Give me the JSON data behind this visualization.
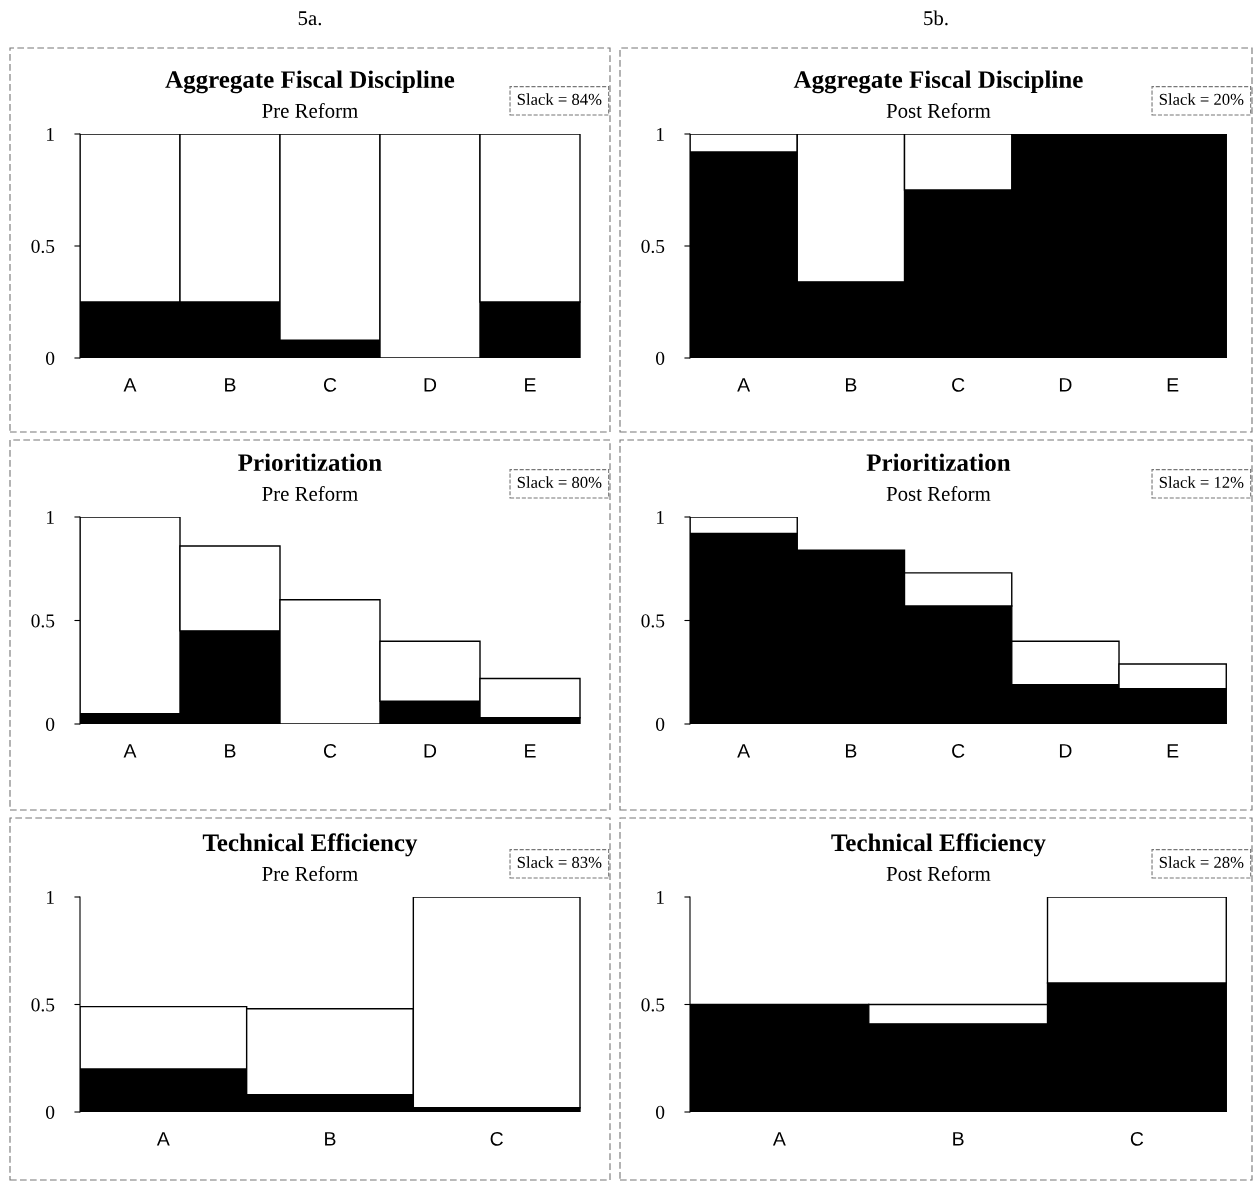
{
  "chart_data": [
    {
      "type": "bar",
      "stacked": true,
      "title": "Aggregate Fiscal Discipline",
      "subtitle": "Pre Reform",
      "annotations": [
        "5a.",
        "Slack = 84%"
      ],
      "categories": [
        "A",
        "B",
        "C",
        "D",
        "E"
      ],
      "ylim": [
        0,
        1
      ],
      "yticks": [
        0,
        0.5,
        1
      ],
      "grid": false,
      "series": [
        {
          "color": "#000000",
          "values": [
            0.25,
            0.25,
            0.08,
            0,
            0.25
          ]
        },
        {
          "color": "#ffffff",
          "values": [
            0.75,
            0.75,
            0.92,
            1,
            0.75
          ]
        }
      ]
    },
    {
      "type": "bar",
      "stacked": true,
      "title": "Aggregate Fiscal Discipline",
      "subtitle": "Post Reform",
      "annotations": [
        "5b.",
        "Slack = 20%"
      ],
      "categories": [
        "A",
        "B",
        "C",
        "D",
        "E"
      ],
      "ylim": [
        0,
        1
      ],
      "yticks": [
        0,
        0.5,
        1
      ],
      "grid": false,
      "series": [
        {
          "color": "#000000",
          "values": [
            0.92,
            0.34,
            0.75,
            1,
            1
          ]
        },
        {
          "color": "#ffffff",
          "values": [
            0.08,
            0.66,
            0.25,
            null,
            null
          ]
        }
      ]
    },
    {
      "type": "bar",
      "stacked": true,
      "title": "Prioritization",
      "subtitle": "Pre Reform",
      "annotations": [
        "Slack = 80%"
      ],
      "categories": [
        "A",
        "B",
        "C",
        "D",
        "E"
      ],
      "ylim": [
        0,
        1
      ],
      "yticks": [
        0,
        0.5,
        1
      ],
      "grid": false,
      "series": [
        {
          "color": "#000000",
          "values": [
            0.05,
            0.45,
            0,
            0.11,
            0.03
          ]
        },
        {
          "color": "#ffffff",
          "values": [
            0.95,
            0.41,
            0.6,
            0.29,
            0.19
          ]
        }
      ]
    },
    {
      "type": "bar",
      "stacked": true,
      "title": "Prioritization",
      "subtitle": "Post Reform",
      "annotations": [
        "Slack = 12%"
      ],
      "categories": [
        "A",
        "B",
        "C",
        "D",
        "E"
      ],
      "ylim": [
        0,
        1
      ],
      "yticks": [
        0,
        0.5,
        1
      ],
      "grid": false,
      "series": [
        {
          "color": "#000000",
          "values": [
            0.92,
            0.84,
            0.57,
            0.19,
            0.17
          ]
        },
        {
          "color": "#ffffff",
          "values": [
            0.08,
            null,
            0.16,
            0.21,
            0.12
          ]
        }
      ]
    },
    {
      "type": "bar",
      "stacked": true,
      "title": "Technical Efficiency",
      "subtitle": "Pre Reform",
      "annotations": [
        "Slack = 83%"
      ],
      "categories": [
        "A",
        "B",
        "C"
      ],
      "ylim": [
        0,
        1
      ],
      "yticks": [
        0,
        0.5,
        1
      ],
      "grid": false,
      "series": [
        {
          "color": "#000000",
          "values": [
            0.2,
            0.08,
            0.02
          ]
        },
        {
          "color": "#ffffff",
          "values": [
            0.29,
            0.4,
            0.98
          ]
        }
      ]
    },
    {
      "type": "bar",
      "stacked": true,
      "title": "Technical Efficiency",
      "subtitle": "Post Reform",
      "annotations": [
        "Slack = 28%"
      ],
      "categories": [
        "A",
        "B",
        "C"
      ],
      "ylim": [
        0,
        1
      ],
      "yticks": [
        0,
        0.5,
        1
      ],
      "grid": false,
      "series": [
        {
          "color": "#000000",
          "values": [
            0.5,
            0.41,
            0.6
          ]
        },
        {
          "color": "#ffffff",
          "values": [
            null,
            0.09,
            0.4
          ]
        }
      ]
    }
  ]
}
